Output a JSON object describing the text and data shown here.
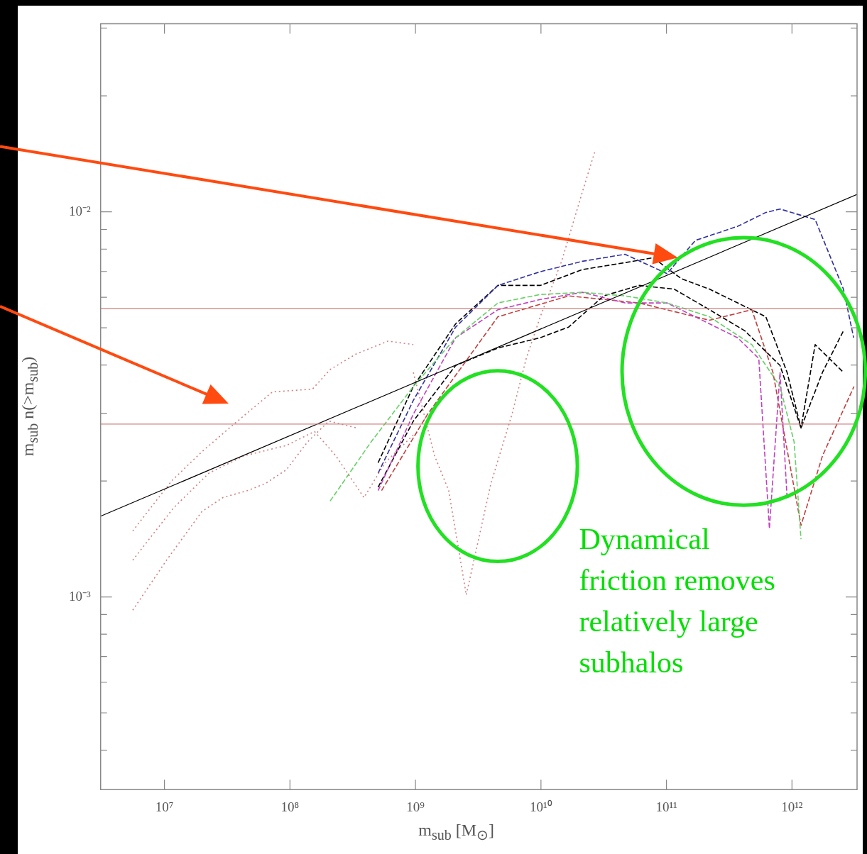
{
  "chart_data": {
    "type": "line",
    "xlabel": "m$_{sub}$ [M$_{⊙}$]",
    "ylabel": "m$_{sub}$ n(>m$_{sub}$)",
    "log": "xy",
    "grid": false,
    "marker": "none",
    "xlim": [
      3100000,
      3300000000000
    ],
    "ylim": [
      0.000316,
      0.0308
    ],
    "xticks": [
      {
        "value": 10000000,
        "label": "10⁷"
      },
      {
        "value": 100000000,
        "label": "10⁸"
      },
      {
        "value": 1000000000,
        "label": "10⁹"
      },
      {
        "value": 10000000000,
        "label": "10¹⁰"
      },
      {
        "value": 100000000000,
        "label": "10¹¹"
      },
      {
        "value": 1000000000000,
        "label": "10¹²"
      }
    ],
    "yticks": [
      {
        "value": 0.0004,
        "label": null
      },
      {
        "value": 0.0005,
        "label": null
      },
      {
        "value": 0.0006,
        "label": null
      },
      {
        "value": 0.0007,
        "label": null
      },
      {
        "value": 0.0008,
        "label": null
      },
      {
        "value": 0.0009,
        "label": null
      },
      {
        "value": 0.001,
        "label": "10⁻³"
      },
      {
        "value": 0.002,
        "label": null
      },
      {
        "value": 0.003,
        "label": null
      },
      {
        "value": 0.004,
        "label": null
      },
      {
        "value": 0.005,
        "label": null
      },
      {
        "value": 0.006,
        "label": null
      },
      {
        "value": 0.007,
        "label": null
      },
      {
        "value": 0.008,
        "label": null
      },
      {
        "value": 0.009,
        "label": null
      },
      {
        "value": 0.01,
        "label": "10⁻²"
      },
      {
        "value": 0.02,
        "label": null
      },
      {
        "value": 0.03,
        "label": null
      }
    ],
    "ref_lines": [
      {
        "axis": "y",
        "value": 0.00561,
        "color": "#d08080"
      },
      {
        "axis": "y",
        "value": 0.00281,
        "color": "#d08080"
      }
    ],
    "annotations": [
      "Dynamical friction removes relatively large subhalos"
    ],
    "series": [
      {
        "color": "#000000",
        "line_style": "solid",
        "x": [
          3100000,
          3300000000000
        ],
        "values": [
          0.00162,
          0.0111
        ]
      },
      {
        "color": "#d08080",
        "line_style": "dotted",
        "x": [
          5590000,
          11400000,
          19900000,
          36000000,
          72400000,
          151000000,
          209000000,
          333000000,
          604000000,
          962000000
        ],
        "values": [
          0.001484,
          0.002001,
          0.002384,
          0.002815,
          0.003407,
          0.003464,
          0.003894,
          0.004266,
          0.004617,
          0.004521
        ]
      },
      {
        "color": "#d08080",
        "line_style": "dotted",
        "x": [
          5590000,
          11800000,
          22600000,
          43100000,
          93800000,
          157000000,
          232000000,
          389000000,
          573000000,
          962000000
        ],
        "values": [
          0.001246,
          0.001702,
          0.002096,
          0.002325,
          0.002474,
          0.002689,
          0.002325,
          0.001811,
          0.002231,
          0.002634
        ]
      },
      {
        "color": "#d08080",
        "line_style": "dotted",
        "x": [
          5590000,
          10400000,
          19900000,
          29200000,
          46000000,
          63600000,
          93800000,
          138000000,
          204000000,
          342000000
        ],
        "values": [
          0.000924,
          0.001246,
          0.001667,
          0.001811,
          0.001889,
          0.001969,
          0.00214,
          0.002526,
          0.002862,
          0.002746
        ]
      },
      {
        "color": "#d08080",
        "line_style": "dotted",
        "x": [
          962000000,
          1420000000,
          1840000000,
          2540000000,
          3990000000,
          5880000000,
          7630000000,
          9870000000,
          14600000000,
          21400000000,
          27100000000
        ],
        "values": [
          0.00383,
          0.002325,
          0.001889,
          0.001012,
          0.001969,
          0.002983,
          0.00416,
          0.00534,
          0.00744,
          0.01128,
          0.01447
        ]
      },
      {
        "color": "#66d066",
        "line_style": "dashed",
        "x": [
          209000000,
          443000000,
          962000000,
          2090000000,
          4540000000,
          9870000000,
          21400000000,
          46700000000,
          101000000000,
          220000000000,
          479000000000,
          803000000000,
          1040000000000,
          1180000000000
        ],
        "values": [
          0.001774,
          0.002526,
          0.00352,
          0.00471,
          0.0058,
          0.0061,
          0.00618,
          0.00605,
          0.0058,
          0.00534,
          0.00452,
          0.00352,
          0.002526,
          0.001412
        ]
      },
      {
        "color": "#3030a0",
        "line_style": "dashed",
        "x": [
          504000000,
          962000000,
          2090000000,
          4540000000,
          9870000000,
          21400000000,
          46700000000,
          101000000000,
          170000000000,
          369000000000,
          619000000000,
          803000000000,
          1530000000000,
          2570000000000,
          3100000000000
        ],
        "values": [
          0.002096,
          0.00324,
          0.00502,
          0.00644,
          0.00699,
          0.00744,
          0.00776,
          0.00691,
          0.00843,
          0.00917,
          0.00996,
          0.01017,
          0.00955,
          0.0063,
          0.00471
        ]
      },
      {
        "color": "#c040c0",
        "line_style": "dashed",
        "x": [
          504000000,
          962000000,
          2090000000,
          4540000000,
          9870000000,
          21400000000,
          46700000000,
          101000000000,
          220000000000,
          369000000000,
          544000000000,
          661000000000,
          803000000000,
          914000000000
        ],
        "values": [
          0.001889,
          0.002983,
          0.00471,
          0.00557,
          0.00592,
          0.00618,
          0.0058,
          0.0058,
          0.00512,
          0.00471,
          0.00416,
          0.001503,
          0.00383,
          0.001811
        ]
      },
      {
        "color": "#000000",
        "line_style": "dashed",
        "x": [
          504000000,
          962000000,
          2090000000,
          4540000000,
          9870000000,
          21400000000,
          46700000000,
          78200000000,
          131000000000,
          220000000000,
          369000000000,
          619000000000,
          914000000000,
          1180000000000,
          1530000000000,
          2570000000000
        ],
        "values": [
          0.002231,
          0.00352,
          0.00512,
          0.00644,
          0.00644,
          0.00708,
          0.00738,
          0.0076,
          0.00671,
          0.0063,
          0.0058,
          0.00534,
          0.00383,
          0.002746,
          0.00452,
          0.00383
        ]
      },
      {
        "color": "#000000",
        "line_style": "dashed",
        "x": [
          504000000,
          962000000,
          2090000000,
          4540000000,
          9870000000,
          16600000000,
          31600000000,
          60400000000,
          115000000000,
          220000000000,
          421000000000,
          803000000000,
          1180000000000,
          1750000000000,
          2570000000000
        ],
        "values": [
          0.001928,
          0.002862,
          0.00399,
          0.00443,
          0.00471,
          0.00502,
          0.00605,
          0.00644,
          0.0063,
          0.00557,
          0.00491,
          0.00399,
          0.002746,
          0.00383,
          0.00491
        ]
      },
      {
        "color": "#c04040",
        "line_style": "dashed",
        "x": [
          537000000,
          1250000000,
          4540000000,
          16600000000,
          60400000000,
          220000000000,
          479000000000,
          705000000000,
          1180000000000,
          1750000000000,
          3120000000000
        ],
        "values": [
          0.001889,
          0.002983,
          0.00534,
          0.00605,
          0.0058,
          0.00523,
          0.00557,
          0.00383,
          0.001534,
          0.002325,
          0.00352
        ]
      }
    ]
  }
}
